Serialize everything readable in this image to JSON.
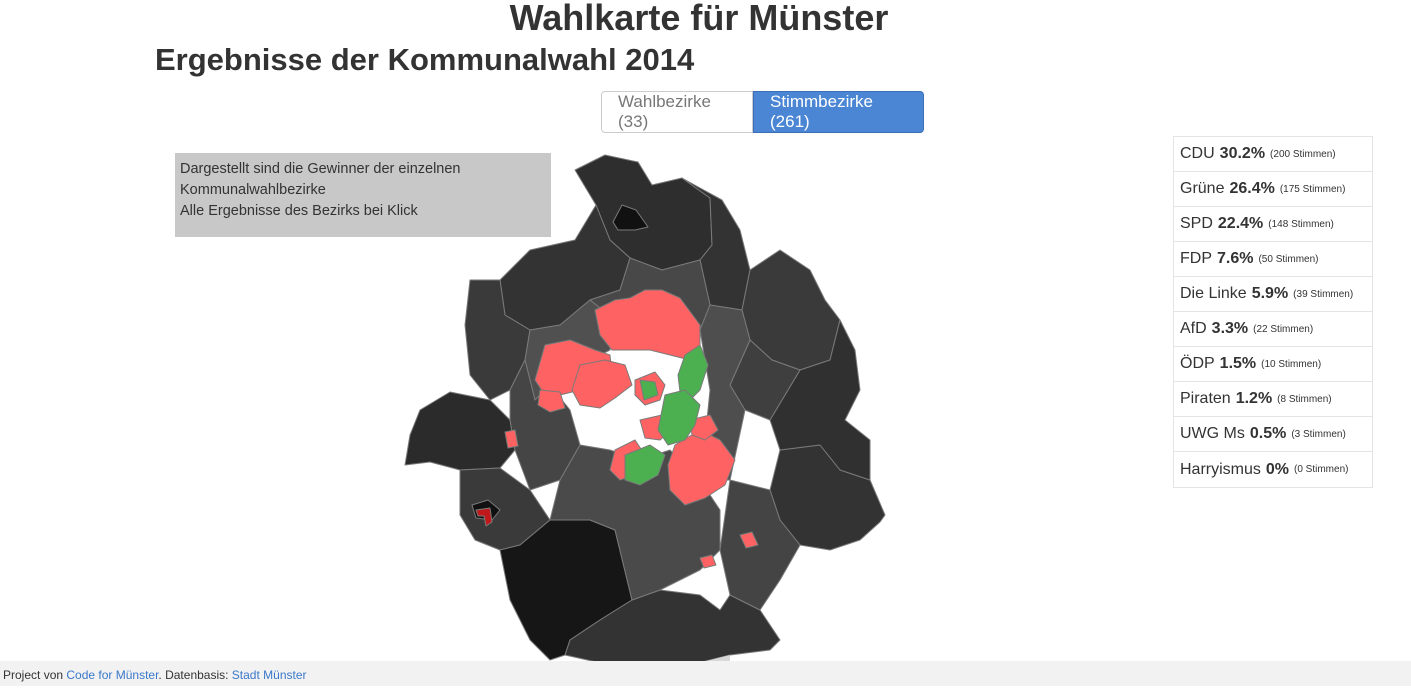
{
  "header": {
    "title": "Wahlkarte für Münster",
    "subtitle": "Ergebnisse der Kommunalwahl 2014"
  },
  "toggle": {
    "wahlbezirke_label": "Wahlbezirke (33)",
    "stimmbezirke_label": "Stimmbezirke (261)",
    "active": "stimmbezirke"
  },
  "info": {
    "line1": "Dargestellt sind die Gewinner der einzelnen",
    "line2": "Kommunalwahlbezirke",
    "line3": "Alle Ergebnisse des Bezirks bei Klick"
  },
  "map": {
    "colors": {
      "cdu_dark": "#3a3a3a",
      "cdu_darker": "#2e2e2e",
      "cdu_mid": "#484848",
      "spd": "#ff6262",
      "gruene": "#4caf50",
      "nodata": "#161616",
      "highlight": "#c0191b",
      "border": "#7a7a7a"
    }
  },
  "results": [
    {
      "party": "CDU",
      "pct": "30.2%",
      "votes": "(200 Stimmen)"
    },
    {
      "party": "Grüne",
      "pct": "26.4%",
      "votes": "(175 Stimmen)"
    },
    {
      "party": "SPD",
      "pct": "22.4%",
      "votes": "(148 Stimmen)"
    },
    {
      "party": "FDP",
      "pct": "7.6%",
      "votes": "(50 Stimmen)"
    },
    {
      "party": "Die Linke",
      "pct": "5.9%",
      "votes": "(39 Stimmen)"
    },
    {
      "party": "AfD",
      "pct": "3.3%",
      "votes": "(22 Stimmen)"
    },
    {
      "party": "ÖDP",
      "pct": "1.5%",
      "votes": "(10 Stimmen)"
    },
    {
      "party": "Piraten",
      "pct": "1.2%",
      "votes": "(8 Stimmen)"
    },
    {
      "party": "UWG Ms",
      "pct": "0.5%",
      "votes": "(3 Stimmen)"
    },
    {
      "party": "Harryismus",
      "pct": "0%",
      "votes": "(0 Stimmen)"
    }
  ],
  "footer": {
    "prefix": "n Project von ",
    "link1": "Code for Münster",
    "middle": ". Datenbasis: ",
    "link2": "Stadt Münster"
  }
}
